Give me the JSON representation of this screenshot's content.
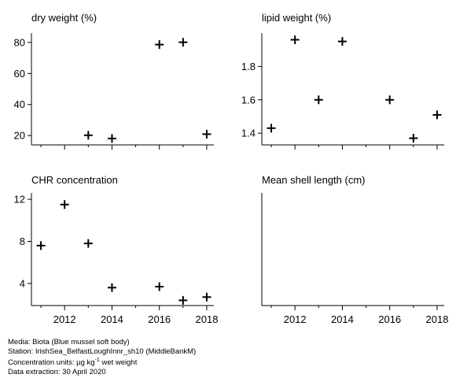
{
  "colors": {
    "axis": "#000000",
    "marker": "#000000",
    "background": "#ffffff"
  },
  "chart_data": [
    {
      "type": "scatter",
      "title": "dry weight (%)",
      "xlabel": "",
      "ylabel": "",
      "xlim": [
        2010.6,
        2018.3
      ],
      "ylim": [
        14,
        86
      ],
      "yticks": [
        20,
        40,
        60,
        80
      ],
      "ytick_labels": [
        "20",
        "40",
        "60",
        "80"
      ],
      "xticks": [
        2012,
        2014,
        2016,
        2018
      ],
      "xtick_labels": [],
      "x": [
        2013,
        2014,
        2016,
        2017,
        2018
      ],
      "y": [
        20.2,
        18.1,
        78.6,
        80.1,
        20.9
      ]
    },
    {
      "type": "scatter",
      "title": "lipid weight (%)",
      "xlabel": "",
      "ylabel": "",
      "xlim": [
        2010.6,
        2018.3
      ],
      "ylim": [
        1.33,
        2.0
      ],
      "yticks": [
        1.4,
        1.6,
        1.8
      ],
      "ytick_labels": [
        "1.4",
        "1.6",
        "1.8"
      ],
      "xticks": [
        2012,
        2014,
        2016,
        2018
      ],
      "xtick_labels": [],
      "x": [
        2011,
        2012,
        2013,
        2014,
        2016,
        2017,
        2018
      ],
      "y": [
        1.43,
        1.96,
        1.6,
        1.95,
        1.6,
        1.37,
        1.51
      ]
    },
    {
      "type": "scatter",
      "title": "CHR concentration",
      "xlabel": "",
      "ylabel": "",
      "xlim": [
        2010.6,
        2018.3
      ],
      "ylim": [
        1.9,
        12.6
      ],
      "yticks": [
        4,
        8,
        12
      ],
      "ytick_labels": [
        "4",
        "8",
        "12"
      ],
      "xticks": [
        2012,
        2014,
        2016,
        2018
      ],
      "xtick_labels": [
        "2012",
        "2014",
        "2016",
        "2018"
      ],
      "x": [
        2011,
        2012,
        2013,
        2014,
        2016,
        2017,
        2018
      ],
      "y": [
        7.6,
        11.5,
        7.8,
        3.6,
        3.7,
        2.4,
        2.7
      ]
    },
    {
      "type": "scatter",
      "title": "Mean shell length (cm)",
      "xlabel": "",
      "ylabel": "",
      "xlim": [
        2010.6,
        2018.3
      ],
      "ylim": [
        0,
        1
      ],
      "yticks": [],
      "ytick_labels": [],
      "xticks": [
        2012,
        2014,
        2016,
        2018
      ],
      "xtick_labels": [
        "2012",
        "2014",
        "2016",
        "2018"
      ],
      "x": [],
      "y": []
    }
  ],
  "caption": {
    "media": "Media: Biota (Blue mussel soft body)",
    "station": "Station: IrishSea_BelfastLoughInnr_sh10 (MiddleBankM)",
    "units_prefix": "Concentration units:  µg kg",
    "units_exp": "-1",
    "units_suffix": " wet weight",
    "extraction": "Data extraction: 30 April 2020"
  }
}
